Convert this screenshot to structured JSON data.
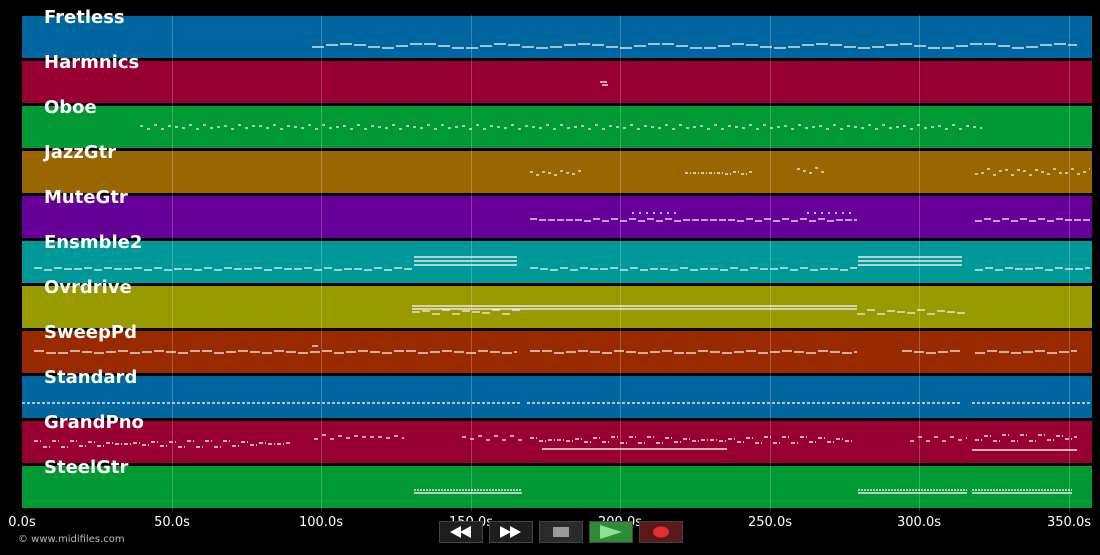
{
  "tracks": [
    {
      "name": "Fretless",
      "color": "#0066a0"
    },
    {
      "name": "Harmnics",
      "color": "#980033"
    },
    {
      "name": "Oboe",
      "color": "#009933"
    },
    {
      "name": "JazzGtr",
      "color": "#996600"
    },
    {
      "name": "MuteGtr",
      "color": "#660099"
    },
    {
      "name": "Ensmble2",
      "color": "#009999"
    },
    {
      "name": "Ovrdrive",
      "color": "#999900"
    },
    {
      "name": "SweepPd",
      "color": "#992a00"
    },
    {
      "name": "Standard",
      "color": "#0066a0"
    },
    {
      "name": "GrandPno",
      "color": "#980033"
    },
    {
      "name": "SteelGtr",
      "color": "#009933"
    }
  ],
  "timeline": {
    "ticks": [
      "0.0s",
      "50.0s",
      "100.0s",
      "150.0s",
      "200.0s",
      "250.0s",
      "300.0s",
      "350.0s"
    ],
    "duration_s": 358
  },
  "transport": {
    "rewind_icon": "rewind-icon",
    "fast_forward_icon": "fast-forward-icon",
    "stop_icon": "stop-icon",
    "play_icon": "play-icon",
    "record_icon": "record-icon",
    "play_color": "#2e8b3a",
    "record_color": "#e03030"
  },
  "copyright": "© www.midifiles.com"
}
